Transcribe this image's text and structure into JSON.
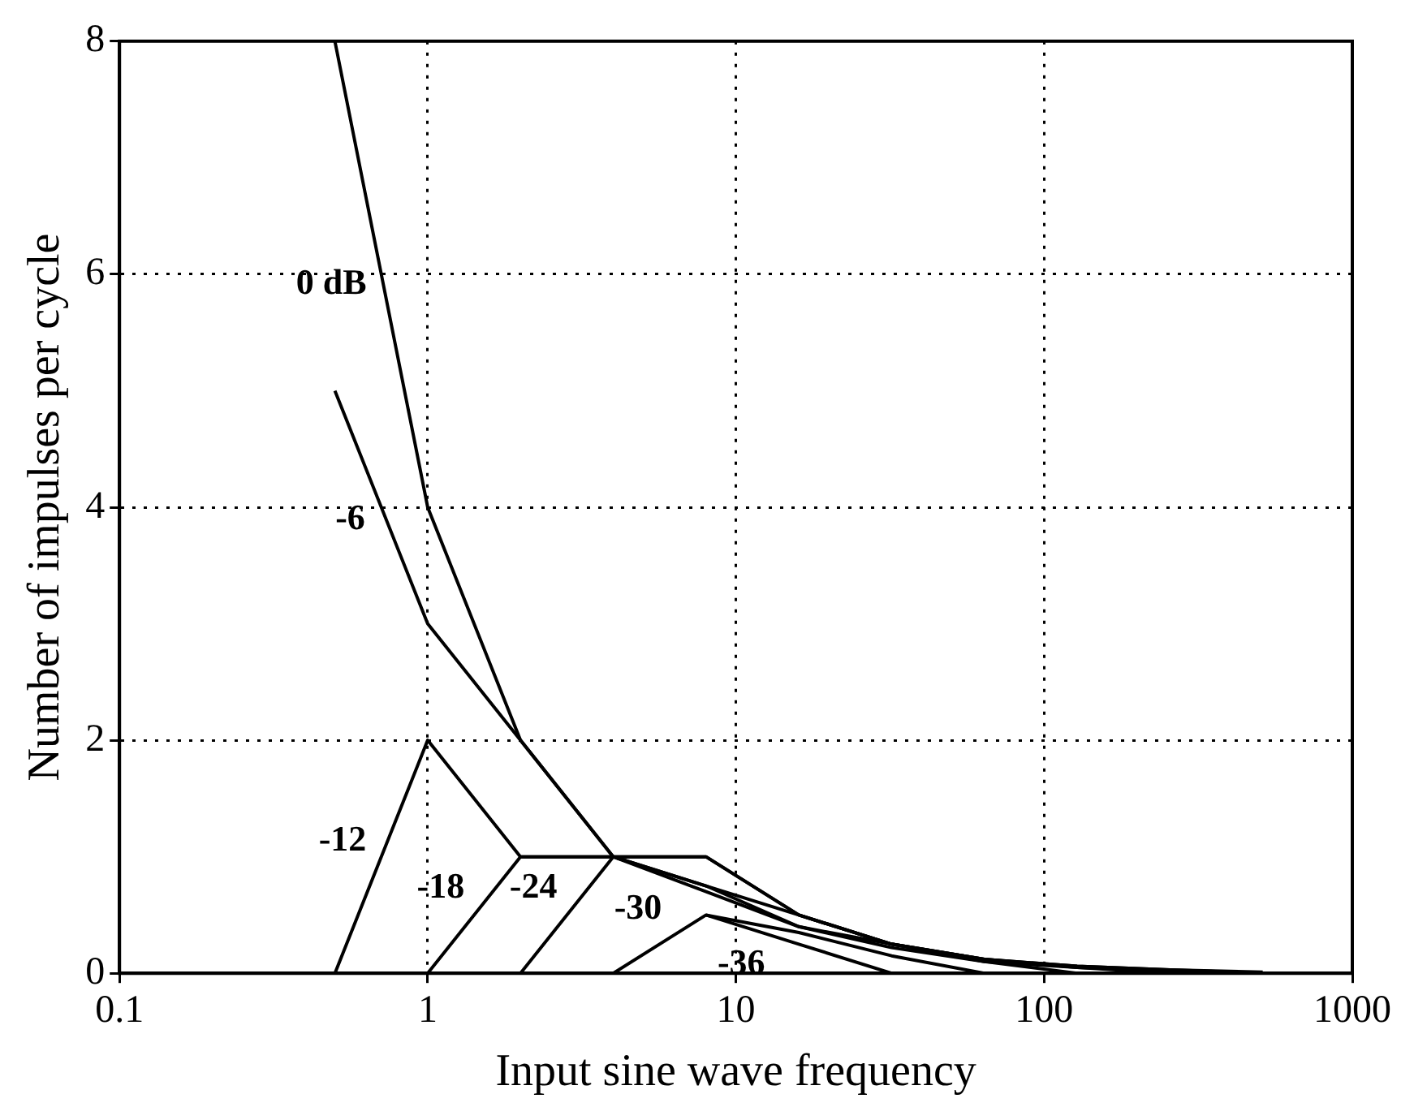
{
  "chart_data": {
    "type": "line",
    "xlabel": "Input sine wave frequency",
    "ylabel": "Number of impulses per cycle",
    "log": "x",
    "xlim": [
      0.1,
      1000
    ],
    "xticks": [
      0.1,
      1,
      10,
      100,
      1000
    ],
    "ylim": [
      0,
      8
    ],
    "yticks": [
      0,
      2,
      4,
      6,
      8
    ],
    "grid": true,
    "line_style": "solid",
    "marker": "none",
    "series": [
      {
        "name": "0 dB",
        "color": "#000000",
        "x": [
          0.5,
          1,
          2,
          4,
          8,
          16,
          32,
          64,
          128,
          256,
          512
        ],
        "values": [
          8,
          4,
          2,
          1,
          0.75,
          0.4,
          0.25,
          0.12,
          0.06,
          0.03,
          0.01
        ]
      },
      {
        "name": "-6",
        "color": "#000000",
        "x": [
          0.5,
          1,
          2,
          4,
          8,
          16,
          32,
          64,
          128,
          256,
          512
        ],
        "values": [
          5,
          3,
          2,
          1,
          0.7,
          0.4,
          0.22,
          0.1,
          0.05,
          0.02,
          0
        ]
      },
      {
        "name": "-12",
        "color": "#000000",
        "x": [
          0.5,
          1,
          2,
          4,
          8,
          16,
          32,
          64,
          128,
          256,
          512
        ],
        "values": [
          0,
          2,
          1,
          1,
          1,
          0.5,
          0.25,
          0.12,
          0.06,
          0.03,
          0
        ]
      },
      {
        "name": "-18",
        "color": "#000000",
        "x": [
          1,
          2,
          4,
          8,
          16,
          32,
          64,
          128,
          256
        ],
        "values": [
          0,
          1,
          1,
          1,
          0.5,
          0.25,
          0.12,
          0.05,
          0
        ]
      },
      {
        "name": "-24",
        "color": "#000000",
        "x": [
          2,
          4,
          8,
          16,
          32,
          64,
          128
        ],
        "values": [
          0,
          1,
          0.75,
          0.5,
          0.25,
          0.1,
          0
        ]
      },
      {
        "name": "-30",
        "color": "#000000",
        "x": [
          4,
          8,
          16,
          32,
          64
        ],
        "values": [
          0,
          0.5,
          0.35,
          0.15,
          0
        ]
      },
      {
        "name": "-36",
        "color": "#000000",
        "x": [
          8,
          16,
          32
        ],
        "values": [
          0.5,
          0.25,
          0
        ]
      }
    ]
  }
}
